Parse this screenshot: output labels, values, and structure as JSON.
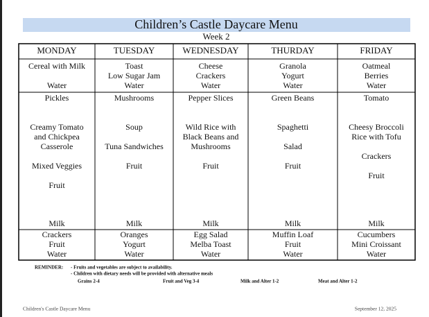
{
  "header": {
    "title": "Children’s Castle Daycare Menu",
    "subtitle": "Week 2"
  },
  "table": {
    "columns": [
      "MONDAY",
      "TUESDAY",
      "WEDNESDAY",
      "THURDAY",
      "FRIDAY"
    ],
    "breakfast": [
      [
        "Cereal with Milk",
        "Water"
      ],
      [
        "Toast",
        "Low Sugar Jam",
        "Water"
      ],
      [
        "Cheese",
        "Crackers",
        "Water"
      ],
      [
        "Granola",
        "Yogurt",
        "Water"
      ],
      [
        "Oatmeal",
        "Berries",
        "Water"
      ]
    ],
    "lunch": [
      [
        "Pickles",
        "Creamy Tomato",
        "and Chickpea",
        "Casserole",
        "Mixed Veggies",
        "Fruit",
        "Milk"
      ],
      [
        "Mushrooms",
        "Soup",
        "Tuna Sandwiches",
        "Fruit",
        "Milk"
      ],
      [
        "Pepper Slices",
        "Wild Rice with",
        "Black Beans and",
        "Mushrooms",
        "Fruit",
        "Milk"
      ],
      [
        "Green Beans",
        "Spaghetti",
        "Salad",
        "Fruit",
        "Milk"
      ],
      [
        "Tomato",
        "Cheesy Broccoli",
        "Rice with Tofu",
        "Crackers",
        "Fruit",
        "Milk"
      ]
    ],
    "snack": [
      [
        "Crackers",
        "Fruit",
        "Water"
      ],
      [
        "Oranges",
        "Yogurt",
        "Water"
      ],
      [
        "Egg Salad",
        "Melba Toast",
        "Water"
      ],
      [
        "Muffin Loaf",
        "Fruit",
        "Water"
      ],
      [
        "Cucumbers",
        "Mini Croissant",
        "Water"
      ]
    ]
  },
  "reminder": {
    "label": "REMINDER:",
    "lines": [
      "- Fruits and vegetables are subject to availability.",
      "- Children with dietary needs will be provided with alternative meals"
    ]
  },
  "servings": [
    "Grains 2-4",
    "Fruit and Veg 3-4",
    "Milk and Alter 1-2",
    "Meat and Alter 1-2"
  ],
  "footer": {
    "left": "Children's Castle Daycare Menu",
    "right": "September 12, 2025"
  }
}
